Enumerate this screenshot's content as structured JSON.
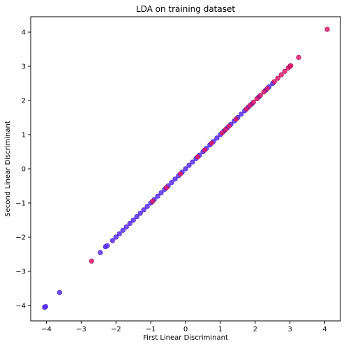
{
  "chart_data": {
    "type": "scatter",
    "title": "LDA on training dataset",
    "xlabel": "First Linear Discriminant",
    "ylabel": "Second Linear Discriminant",
    "xlim": [
      -4.45,
      4.45
    ],
    "ylim": [
      -4.45,
      4.45
    ],
    "xticks": [
      -4,
      -3,
      -2,
      -1,
      0,
      1,
      2,
      3,
      4
    ],
    "yticks": [
      -4,
      -3,
      -2,
      -1,
      0,
      1,
      2,
      3,
      4
    ],
    "tick_labels": [
      "−4",
      "−3",
      "−2",
      "−1",
      "0",
      "1",
      "2",
      "3",
      "4"
    ],
    "grid": false,
    "legend": "none",
    "series": [
      {
        "color": "#5a2cff",
        "edge": "#3b1fb0",
        "points": [
          [
            -4.05,
            -4.05
          ],
          [
            -4.02,
            -4.03
          ],
          [
            -3.62,
            -3.62
          ],
          [
            -2.45,
            -2.45
          ],
          [
            -2.3,
            -2.28
          ],
          [
            -2.25,
            -2.25
          ],
          [
            -2.1,
            -2.1
          ],
          [
            -2.0,
            -2.0
          ],
          [
            -1.9,
            -1.9
          ],
          [
            -1.8,
            -1.8
          ],
          [
            -1.7,
            -1.7
          ],
          [
            -1.6,
            -1.6
          ],
          [
            -1.5,
            -1.5
          ],
          [
            -1.4,
            -1.4
          ],
          [
            -1.3,
            -1.3
          ],
          [
            -1.2,
            -1.2
          ],
          [
            -1.1,
            -1.1
          ],
          [
            -1.0,
            -1.0
          ],
          [
            -0.9,
            -0.9
          ],
          [
            -0.8,
            -0.8
          ],
          [
            -0.7,
            -0.7
          ],
          [
            -0.6,
            -0.6
          ],
          [
            -0.5,
            -0.5
          ],
          [
            -0.4,
            -0.4
          ],
          [
            -0.3,
            -0.3
          ],
          [
            -0.2,
            -0.2
          ],
          [
            -0.1,
            -0.1
          ],
          [
            0.0,
            0.0
          ],
          [
            0.1,
            0.1
          ],
          [
            0.2,
            0.2
          ],
          [
            0.3,
            0.3
          ],
          [
            0.4,
            0.4
          ],
          [
            0.5,
            0.5
          ],
          [
            0.6,
            0.6
          ],
          [
            0.7,
            0.7
          ],
          [
            0.8,
            0.8
          ],
          [
            0.9,
            0.9
          ],
          [
            1.0,
            1.0
          ],
          [
            1.1,
            1.1
          ],
          [
            1.2,
            1.2
          ],
          [
            1.3,
            1.3
          ],
          [
            1.4,
            1.4
          ],
          [
            1.5,
            1.5
          ],
          [
            1.6,
            1.6
          ],
          [
            1.7,
            1.7
          ],
          [
            1.8,
            1.8
          ],
          [
            1.9,
            1.9
          ],
          [
            2.1,
            2.1
          ],
          [
            2.3,
            2.3
          ],
          [
            2.4,
            2.4
          ],
          [
            2.5,
            2.5
          ]
        ]
      },
      {
        "color": "#e0186c",
        "edge": "#9b1050",
        "points": [
          [
            -2.7,
            -2.7
          ],
          [
            -0.95,
            -0.95
          ],
          [
            -0.55,
            -0.55
          ],
          [
            -0.15,
            -0.15
          ],
          [
            0.35,
            0.35
          ],
          [
            0.55,
            0.55
          ],
          [
            0.75,
            0.75
          ],
          [
            1.05,
            1.05
          ],
          [
            1.15,
            1.15
          ],
          [
            1.25,
            1.25
          ],
          [
            1.45,
            1.45
          ],
          [
            1.75,
            1.75
          ],
          [
            1.85,
            1.85
          ],
          [
            1.95,
            1.95
          ],
          [
            2.05,
            2.05
          ],
          [
            2.15,
            2.15
          ],
          [
            2.25,
            2.25
          ],
          [
            2.35,
            2.35
          ],
          [
            2.55,
            2.55
          ],
          [
            2.65,
            2.65
          ],
          [
            2.75,
            2.75
          ],
          [
            2.85,
            2.85
          ],
          [
            2.95,
            2.95
          ],
          [
            3.0,
            3.0
          ],
          [
            3.02,
            3.02
          ],
          [
            3.25,
            3.26
          ],
          [
            4.07,
            4.08
          ]
        ]
      }
    ]
  }
}
